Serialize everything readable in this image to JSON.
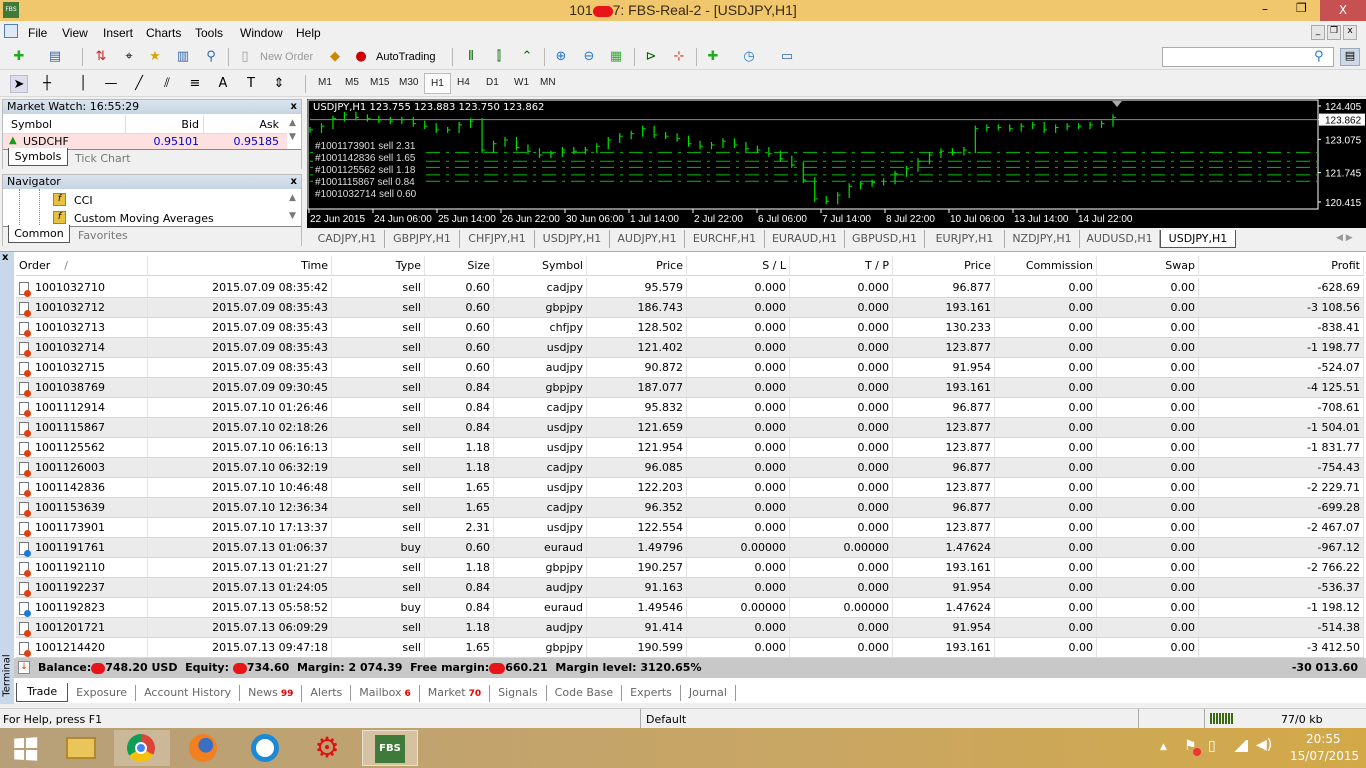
{
  "window": {
    "title_prefix": "101",
    "title_suffix": "7: FBS-Real-2 - [USDJPY,H1]",
    "logo": "FBS",
    "min": "–",
    "restore": "❐",
    "close": "X"
  },
  "menu": [
    "File",
    "View",
    "Insert",
    "Charts",
    "Tools",
    "Window",
    "Help"
  ],
  "toolbar": {
    "new_order": "New Order",
    "autotrading": "AutoTrading"
  },
  "timeframes": [
    "M1",
    "M5",
    "M15",
    "M30",
    "H1",
    "H4",
    "D1",
    "W1",
    "MN"
  ],
  "active_timeframe": "H1",
  "search": {
    "placeholder": ""
  },
  "market_watch": {
    "title": "Market Watch: 16:55:29",
    "columns": [
      "Symbol",
      "Bid",
      "Ask"
    ],
    "row": {
      "symbol": "USDCHF",
      "bid": "0.95101",
      "ask": "0.95185"
    },
    "tabs": [
      "Symbols",
      "Tick Chart"
    ]
  },
  "navigator": {
    "title": "Navigator",
    "items": [
      "CCI",
      "Custom Moving Averages"
    ],
    "tabs": [
      "Common",
      "Favorites"
    ]
  },
  "chart": {
    "header": "USDJPY,H1  123.755 123.883 123.750 123.862",
    "price_labels": [
      "124.405",
      "123.862",
      "123.075",
      "121.745",
      "120.415"
    ],
    "current_price": 123.862,
    "price_range": [
      120.415,
      124.405
    ],
    "time_labels": [
      "22 Jun 2015",
      "24 Jun 06:00",
      "25 Jun 14:00",
      "26 Jun 22:00",
      "30 Jun 06:00",
      "1 Jul 14:00",
      "2 Jul 22:00",
      "6 Jul 06:00",
      "7 Jul 14:00",
      "8 Jul 22:00",
      "10 Jul 06:00",
      "13 Jul 14:00",
      "14 Jul 22:00"
    ],
    "closes": [
      123.45,
      123.6,
      123.9,
      124.05,
      123.95,
      123.9,
      123.85,
      123.8,
      123.85,
      123.7,
      123.6,
      123.45,
      123.45,
      123.65,
      123.8,
      122.65,
      122.9,
      123.05,
      122.75,
      122.6,
      122.45,
      122.5,
      122.65,
      122.6,
      122.65,
      122.8,
      123.05,
      123.2,
      123.3,
      123.5,
      123.25,
      123.2,
      123.1,
      122.9,
      122.8,
      122.85,
      123.0,
      122.85,
      122.7,
      122.65,
      122.5,
      122.3,
      122.05,
      121.45,
      120.7,
      120.6,
      120.85,
      121.2,
      121.3,
      121.35,
      121.4,
      121.7,
      121.9,
      122.2,
      122.45,
      122.6,
      122.55,
      122.65,
      123.5,
      123.55,
      123.55,
      123.5,
      123.6,
      123.65,
      123.45,
      123.55,
      123.6,
      123.6,
      123.65,
      123.7,
      123.95
    ],
    "order_lines": [
      {
        "label": "#1001173901 sell 2.31",
        "price": 122.554
      },
      {
        "label": "#1001142836 sell 1.65",
        "price": 122.203
      },
      {
        "label": "#1001125562 sell 1.18",
        "price": 121.954
      },
      {
        "label": "#1001115867 sell 0.84",
        "price": 121.659
      },
      {
        "label": "#1001032714 sell 0.60",
        "price": 121.402
      }
    ],
    "colors": {
      "bars": "#00e000",
      "lines": "#00c000",
      "background": "#000000"
    },
    "tabs": [
      "CADJPY,H1",
      "GBPJPY,H1",
      "CHFJPY,H1",
      "USDJPY,H1",
      "AUDJPY,H1",
      "EURCHF,H1",
      "EURAUD,H1",
      "GBPUSD,H1",
      "EURJPY,H1",
      "NZDJPY,H1",
      "AUDUSD,H1",
      "USDJPY,H1"
    ],
    "active_tab": 11
  },
  "terminal": {
    "side_label": "Terminal",
    "columns": [
      "Order",
      "Time",
      "Type",
      "Size",
      "Symbol",
      "Price",
      "S / L",
      "T / P",
      "Price",
      "Commission",
      "Swap",
      "Profit"
    ],
    "sort_indicator": "/",
    "rows": [
      [
        "1001032710",
        "2015.07.09 08:35:42",
        "sell",
        "0.60",
        "cadjpy",
        "95.579",
        "0.000",
        "0.000",
        "96.877",
        "0.00",
        "0.00",
        "-628.69"
      ],
      [
        "1001032712",
        "2015.07.09 08:35:43",
        "sell",
        "0.60",
        "gbpjpy",
        "186.743",
        "0.000",
        "0.000",
        "193.161",
        "0.00",
        "0.00",
        "-3 108.56"
      ],
      [
        "1001032713",
        "2015.07.09 08:35:43",
        "sell",
        "0.60",
        "chfjpy",
        "128.502",
        "0.000",
        "0.000",
        "130.233",
        "0.00",
        "0.00",
        "-838.41"
      ],
      [
        "1001032714",
        "2015.07.09 08:35:43",
        "sell",
        "0.60",
        "usdjpy",
        "121.402",
        "0.000",
        "0.000",
        "123.877",
        "0.00",
        "0.00",
        "-1 198.77"
      ],
      [
        "1001032715",
        "2015.07.09 08:35:43",
        "sell",
        "0.60",
        "audjpy",
        "90.872",
        "0.000",
        "0.000",
        "91.954",
        "0.00",
        "0.00",
        "-524.07"
      ],
      [
        "1001038769",
        "2015.07.09 09:30:45",
        "sell",
        "0.84",
        "gbpjpy",
        "187.077",
        "0.000",
        "0.000",
        "193.161",
        "0.00",
        "0.00",
        "-4 125.51"
      ],
      [
        "1001112914",
        "2015.07.10 01:26:46",
        "sell",
        "0.84",
        "cadjpy",
        "95.832",
        "0.000",
        "0.000",
        "96.877",
        "0.00",
        "0.00",
        "-708.61"
      ],
      [
        "1001115867",
        "2015.07.10 02:18:26",
        "sell",
        "0.84",
        "usdjpy",
        "121.659",
        "0.000",
        "0.000",
        "123.877",
        "0.00",
        "0.00",
        "-1 504.01"
      ],
      [
        "1001125562",
        "2015.07.10 06:16:13",
        "sell",
        "1.18",
        "usdjpy",
        "121.954",
        "0.000",
        "0.000",
        "123.877",
        "0.00",
        "0.00",
        "-1 831.77"
      ],
      [
        "1001126003",
        "2015.07.10 06:32:19",
        "sell",
        "1.18",
        "cadjpy",
        "96.085",
        "0.000",
        "0.000",
        "96.877",
        "0.00",
        "0.00",
        "-754.43"
      ],
      [
        "1001142836",
        "2015.07.10 10:46:48",
        "sell",
        "1.65",
        "usdjpy",
        "122.203",
        "0.000",
        "0.000",
        "123.877",
        "0.00",
        "0.00",
        "-2 229.71"
      ],
      [
        "1001153639",
        "2015.07.10 12:36:34",
        "sell",
        "1.65",
        "cadjpy",
        "96.352",
        "0.000",
        "0.000",
        "96.877",
        "0.00",
        "0.00",
        "-699.28"
      ],
      [
        "1001173901",
        "2015.07.10 17:13:37",
        "sell",
        "2.31",
        "usdjpy",
        "122.554",
        "0.000",
        "0.000",
        "123.877",
        "0.00",
        "0.00",
        "-2 467.07"
      ],
      [
        "1001191761",
        "2015.07.13 01:06:37",
        "buy",
        "0.60",
        "euraud",
        "1.49796",
        "0.00000",
        "0.00000",
        "1.47624",
        "0.00",
        "0.00",
        "-967.12"
      ],
      [
        "1001192110",
        "2015.07.13 01:21:27",
        "sell",
        "1.18",
        "gbpjpy",
        "190.257",
        "0.000",
        "0.000",
        "193.161",
        "0.00",
        "0.00",
        "-2 766.22"
      ],
      [
        "1001192237",
        "2015.07.13 01:24:05",
        "sell",
        "0.84",
        "audjpy",
        "91.163",
        "0.000",
        "0.000",
        "91.954",
        "0.00",
        "0.00",
        "-536.37"
      ],
      [
        "1001192823",
        "2015.07.13 05:58:52",
        "buy",
        "0.84",
        "euraud",
        "1.49546",
        "0.00000",
        "0.00000",
        "1.47624",
        "0.00",
        "0.00",
        "-1 198.12"
      ],
      [
        "1001201721",
        "2015.07.13 06:09:29",
        "sell",
        "1.18",
        "audjpy",
        "91.414",
        "0.000",
        "0.000",
        "91.954",
        "0.00",
        "0.00",
        "-514.38"
      ],
      [
        "1001214420",
        "2015.07.13 09:47:18",
        "sell",
        "1.65",
        "gbpjpy",
        "190.599",
        "0.000",
        "0.000",
        "193.161",
        "0.00",
        "0.00",
        "-3 412.50"
      ]
    ],
    "summary": {
      "balance_label": "Balance:",
      "balance": "748.20 USD",
      "equity_label": "Equity:",
      "equity": "734.60",
      "margin_label": "Margin:",
      "margin": "2 074.39",
      "free_margin_label": "Free margin:",
      "free_margin": "660.21",
      "margin_level_label": "Margin level:",
      "margin_level": "3120.65%",
      "total_profit": "-30 013.60"
    },
    "tabs": [
      {
        "label": "Trade"
      },
      {
        "label": "Exposure"
      },
      {
        "label": "Account History"
      },
      {
        "label": "News",
        "count": "99"
      },
      {
        "label": "Alerts"
      },
      {
        "label": "Mailbox",
        "count": "6"
      },
      {
        "label": "Market",
        "count": "70"
      },
      {
        "label": "Signals"
      },
      {
        "label": "Code Base"
      },
      {
        "label": "Experts"
      },
      {
        "label": "Journal"
      }
    ],
    "colors": {
      "sell_icon": "#e04010",
      "buy_icon": "#1a7ad8"
    }
  },
  "statusbar": {
    "help": "For Help, press F1",
    "profile": "Default",
    "traffic": "77/0 kb"
  },
  "taskbar": {
    "time": "20:55",
    "date": "15/07/2015",
    "apps": [
      "file-explorer",
      "chrome",
      "firefox",
      "browser",
      "app-red",
      "fbs-terminal"
    ],
    "fbs_label": "FBS"
  }
}
